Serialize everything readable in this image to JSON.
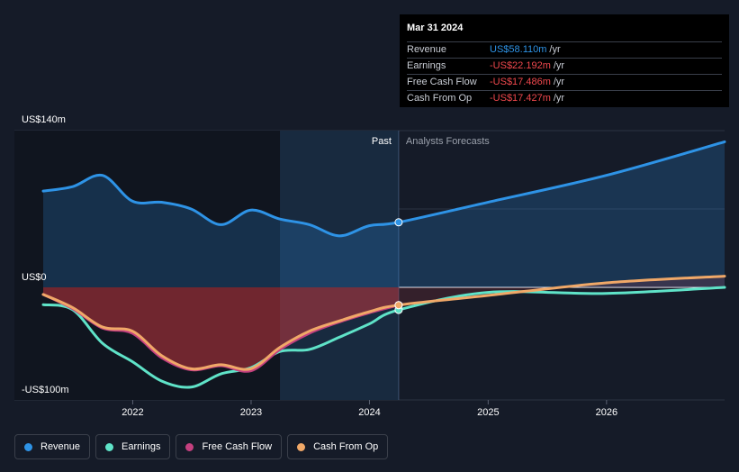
{
  "tooltip": {
    "date": "Mar 31 2024",
    "rows": [
      {
        "name": "Revenue",
        "value": "US$58.110m",
        "unit": "/yr",
        "tone": "pos"
      },
      {
        "name": "Earnings",
        "value": "-US$22.192m",
        "unit": "/yr",
        "tone": "neg"
      },
      {
        "name": "Free Cash Flow",
        "value": "-US$17.486m",
        "unit": "/yr",
        "tone": "neg"
      },
      {
        "name": "Cash From Op",
        "value": "-US$17.427m",
        "unit": "/yr",
        "tone": "neg"
      }
    ]
  },
  "legend": [
    {
      "name": "Revenue",
      "color": "#2e93e6"
    },
    {
      "name": "Earnings",
      "color": "#5fe3c8"
    },
    {
      "name": "Free Cash Flow",
      "color": "#c4407f"
    },
    {
      "name": "Cash From Op",
      "color": "#f0a868"
    }
  ],
  "chart_data": {
    "type": "line",
    "title": "",
    "xlabel": "",
    "ylabel": "",
    "y_unit": "US$m",
    "y_axis_labels": [
      {
        "value": 140,
        "label": "US$140m"
      },
      {
        "value": 0,
        "label": "US$0"
      },
      {
        "value": -100,
        "label": "-US$100m"
      }
    ],
    "ylim": [
      -100,
      140
    ],
    "xlim": [
      "2021-03-31",
      "2026-12-31"
    ],
    "x_ticks": [
      "2022",
      "2023",
      "2024",
      "2025",
      "2026"
    ],
    "x_tick_values": [
      "2022-01-01",
      "2023-01-01",
      "2024-01-01",
      "2025-01-01",
      "2026-01-01"
    ],
    "grid": true,
    "legend_position": "bottom-left",
    "past_label": "Past",
    "forecast_label": "Analysts Forecasts",
    "forecast_start": "2024-03-31",
    "highlight_start": "2023-03-31",
    "highlight_end": "2024-03-31",
    "colors": {
      "revenue": "#2e93e6",
      "earnings": "#5fe3c8",
      "fcf": "#c4407f",
      "cfo": "#f0a868"
    },
    "series": [
      {
        "name": "Revenue",
        "key": "revenue",
        "x": [
          "2021-03-31",
          "2021-06-30",
          "2021-09-30",
          "2021-12-31",
          "2022-03-31",
          "2022-06-30",
          "2022-09-30",
          "2022-12-31",
          "2023-03-31",
          "2023-06-30",
          "2023-09-30",
          "2023-12-31",
          "2024-03-31",
          "2024-12-31",
          "2025-12-31",
          "2026-12-31"
        ],
        "values": [
          86,
          90,
          100,
          77,
          76,
          70,
          56,
          69,
          61,
          56,
          46,
          55,
          58.11,
          76,
          100,
          130
        ]
      },
      {
        "name": "Earnings",
        "key": "earnings",
        "x": [
          "2021-03-31",
          "2021-06-30",
          "2021-09-30",
          "2021-12-31",
          "2022-03-31",
          "2022-06-30",
          "2022-09-30",
          "2022-12-31",
          "2023-03-31",
          "2023-06-30",
          "2023-09-30",
          "2023-12-31",
          "2024-03-31",
          "2024-12-31",
          "2025-12-31",
          "2026-12-31"
        ],
        "values": [
          -17,
          -22,
          -55,
          -73,
          -92,
          -98,
          -85,
          -79,
          -63,
          -61,
          -49,
          -36,
          -22.192,
          -5,
          -6,
          0
        ]
      },
      {
        "name": "Free Cash Flow",
        "key": "fcf",
        "x": [
          "2021-03-31",
          "2021-06-30",
          "2021-09-30",
          "2021-12-31",
          "2022-03-31",
          "2022-06-30",
          "2022-09-30",
          "2022-12-31",
          "2023-03-31",
          "2023-06-30",
          "2023-09-30",
          "2023-12-31",
          "2024-03-31"
        ],
        "values": [
          -7,
          -21,
          -40,
          -45,
          -69,
          -81,
          -77,
          -82,
          -61,
          -45,
          -34,
          -25,
          -17.486
        ]
      },
      {
        "name": "Cash From Op",
        "key": "cfo",
        "x": [
          "2021-03-31",
          "2021-06-30",
          "2021-09-30",
          "2021-12-31",
          "2022-03-31",
          "2022-06-30",
          "2022-09-30",
          "2022-12-31",
          "2023-03-31",
          "2023-06-30",
          "2023-09-30",
          "2023-12-31",
          "2024-03-31",
          "2024-12-31",
          "2025-12-31",
          "2026-12-31"
        ],
        "values": [
          -7,
          -20,
          -39,
          -43,
          -67,
          -80,
          -76,
          -80,
          -59,
          -43,
          -33,
          -24,
          -17.427,
          -8,
          4,
          10
        ]
      }
    ]
  }
}
